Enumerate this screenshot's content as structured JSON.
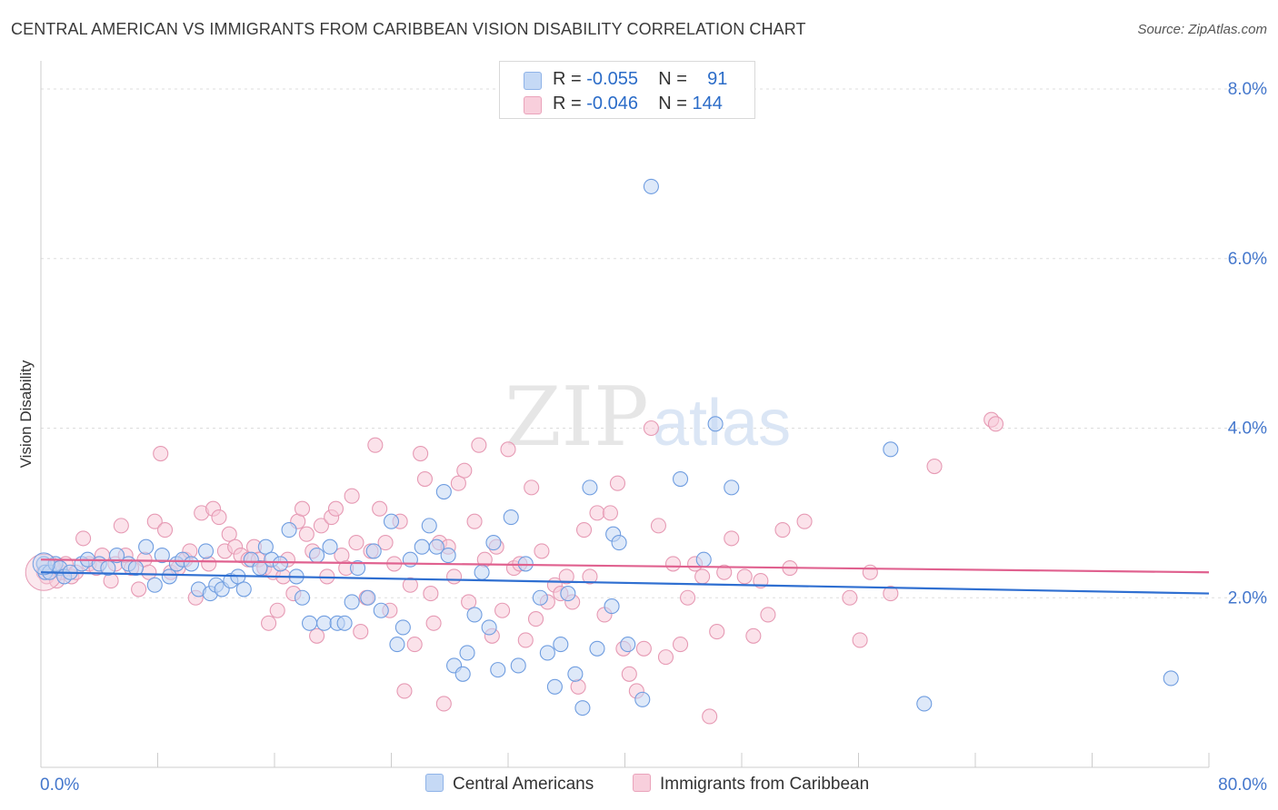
{
  "title": "CENTRAL AMERICAN VS IMMIGRANTS FROM CARIBBEAN VISION DISABILITY CORRELATION CHART",
  "source": "Source: ZipAtlas.com",
  "watermark": {
    "zip": "ZIP",
    "atlas": "atlas"
  },
  "legend": {
    "rows": [
      {
        "r_label": "R = ",
        "r_value": "-0.055",
        "n_label": "N = ",
        "n_value": "91",
        "color": "#8fb3e8",
        "fill": "#c5d9f5"
      },
      {
        "r_label": "R = ",
        "r_value": "-0.046",
        "n_label": "N = ",
        "n_value": "144",
        "color": "#eaa3bb",
        "fill": "#f8cfdc"
      }
    ]
  },
  "chart_data": {
    "type": "scatter",
    "title": "CENTRAL AMERICAN VS IMMIGRANTS FROM CARIBBEAN VISION DISABILITY CORRELATION CHART",
    "xlabel": "",
    "ylabel": "Vision Disability",
    "xlim": [
      0,
      80
    ],
    "ylim": [
      0,
      8.3
    ],
    "x_tick_labels": [
      "0.0%",
      "80.0%"
    ],
    "y_ticks": [
      2,
      4,
      6,
      8
    ],
    "y_tick_labels": [
      "2.0%",
      "4.0%",
      "6.0%",
      "8.0%"
    ],
    "grid": true,
    "legend_position": "top-center",
    "series": [
      {
        "name": "Central Americans",
        "color": "#6f9de0",
        "fill": "#c3d7f4",
        "trend": {
          "x": [
            0,
            80
          ],
          "y": [
            2.3,
            2.05
          ]
        },
        "points": [
          [
            0.2,
            2.4
          ],
          [
            0.3,
            2.3
          ],
          [
            0.6,
            2.3
          ],
          [
            1,
            2.4
          ],
          [
            1.3,
            2.35
          ],
          [
            1.6,
            2.25
          ],
          [
            2,
            2.3
          ],
          [
            2.8,
            2.4
          ],
          [
            3.2,
            2.45
          ],
          [
            4,
            2.4
          ],
          [
            4.6,
            2.35
          ],
          [
            5.2,
            2.5
          ],
          [
            6,
            2.4
          ],
          [
            6.5,
            2.35
          ],
          [
            7.2,
            2.6
          ],
          [
            7.8,
            2.15
          ],
          [
            8.3,
            2.5
          ],
          [
            8.8,
            2.25
          ],
          [
            9.3,
            2.4
          ],
          [
            9.7,
            2.45
          ],
          [
            10.3,
            2.4
          ],
          [
            10.8,
            2.1
          ],
          [
            11.3,
            2.55
          ],
          [
            11.6,
            2.05
          ],
          [
            12,
            2.15
          ],
          [
            12.4,
            2.1
          ],
          [
            13,
            2.2
          ],
          [
            13.5,
            2.25
          ],
          [
            13.9,
            2.1
          ],
          [
            14.4,
            2.45
          ],
          [
            15,
            2.35
          ],
          [
            15.4,
            2.6
          ],
          [
            15.8,
            2.45
          ],
          [
            16.4,
            2.4
          ],
          [
            17,
            2.8
          ],
          [
            17.5,
            2.25
          ],
          [
            17.9,
            2.0
          ],
          [
            18.4,
            1.7
          ],
          [
            18.9,
            2.5
          ],
          [
            19.4,
            1.7
          ],
          [
            19.8,
            2.6
          ],
          [
            20.3,
            1.7
          ],
          [
            20.8,
            1.7
          ],
          [
            21.3,
            1.95
          ],
          [
            21.7,
            2.35
          ],
          [
            22.4,
            2.0
          ],
          [
            22.8,
            2.55
          ],
          [
            23.3,
            1.85
          ],
          [
            24,
            2.9
          ],
          [
            24.4,
            1.45
          ],
          [
            24.8,
            1.65
          ],
          [
            25.3,
            2.45
          ],
          [
            26.1,
            2.6
          ],
          [
            26.6,
            2.85
          ],
          [
            27.1,
            2.6
          ],
          [
            27.6,
            3.25
          ],
          [
            27.9,
            2.5
          ],
          [
            28.3,
            1.2
          ],
          [
            28.9,
            1.1
          ],
          [
            29.2,
            1.35
          ],
          [
            29.7,
            1.8
          ],
          [
            30.2,
            2.3
          ],
          [
            30.7,
            1.65
          ],
          [
            31,
            2.65
          ],
          [
            31.3,
            1.15
          ],
          [
            32.2,
            2.95
          ],
          [
            32.7,
            1.2
          ],
          [
            33.2,
            2.4
          ],
          [
            34.2,
            2.0
          ],
          [
            34.7,
            1.35
          ],
          [
            35.2,
            0.95
          ],
          [
            35.6,
            1.45
          ],
          [
            36.1,
            2.05
          ],
          [
            36.6,
            1.1
          ],
          [
            37.1,
            0.7
          ],
          [
            37.6,
            3.3
          ],
          [
            38.1,
            1.4
          ],
          [
            39.2,
            2.75
          ],
          [
            39.6,
            2.65
          ],
          [
            39.1,
            1.9
          ],
          [
            40.2,
            1.45
          ],
          [
            41.2,
            0.8
          ],
          [
            41.8,
            6.85
          ],
          [
            43.8,
            3.4
          ],
          [
            45.4,
            2.45
          ],
          [
            46.2,
            4.05
          ],
          [
            47.3,
            3.3
          ],
          [
            58.2,
            3.75
          ],
          [
            60.5,
            0.75
          ],
          [
            77.4,
            1.05
          ]
        ],
        "sizes": {
          "0.2,2.4": 22
        }
      },
      {
        "name": "Immigrants from Caribbean",
        "color": "#e69ab4",
        "fill": "#f7cbd9",
        "trend": {
          "x": [
            0,
            80
          ],
          "y": [
            2.45,
            2.3
          ]
        },
        "points": [
          [
            0.2,
            2.3
          ],
          [
            0.4,
            2.25
          ],
          [
            0.8,
            2.35
          ],
          [
            1.1,
            2.2
          ],
          [
            1.4,
            2.3
          ],
          [
            1.7,
            2.4
          ],
          [
            2.1,
            2.25
          ],
          [
            2.4,
            2.3
          ],
          [
            2.9,
            2.7
          ],
          [
            3.3,
            2.4
          ],
          [
            3.8,
            2.35
          ],
          [
            4.2,
            2.5
          ],
          [
            4.8,
            2.2
          ],
          [
            5.1,
            2.4
          ],
          [
            5.5,
            2.85
          ],
          [
            5.8,
            2.5
          ],
          [
            6.2,
            2.35
          ],
          [
            6.7,
            2.1
          ],
          [
            7.1,
            2.45
          ],
          [
            7.4,
            2.3
          ],
          [
            7.8,
            2.9
          ],
          [
            8.2,
            3.7
          ],
          [
            8.5,
            2.8
          ],
          [
            8.9,
            2.3
          ],
          [
            9.4,
            2.35
          ],
          [
            9.9,
            2.45
          ],
          [
            10.2,
            2.55
          ],
          [
            10.6,
            2.0
          ],
          [
            11,
            3.0
          ],
          [
            11.5,
            2.4
          ],
          [
            11.8,
            3.05
          ],
          [
            12.2,
            2.95
          ],
          [
            12.6,
            2.55
          ],
          [
            12.9,
            2.75
          ],
          [
            13.3,
            2.6
          ],
          [
            13.7,
            2.5
          ],
          [
            14.2,
            2.45
          ],
          [
            14.6,
            2.6
          ],
          [
            14.9,
            2.45
          ],
          [
            15.3,
            2.35
          ],
          [
            15.6,
            1.7
          ],
          [
            15.9,
            2.3
          ],
          [
            16.2,
            1.85
          ],
          [
            16.6,
            2.25
          ],
          [
            16.9,
            2.45
          ],
          [
            17.3,
            2.05
          ],
          [
            17.6,
            2.9
          ],
          [
            17.9,
            3.05
          ],
          [
            18.2,
            2.75
          ],
          [
            18.6,
            2.55
          ],
          [
            18.9,
            1.55
          ],
          [
            19.2,
            2.85
          ],
          [
            19.6,
            2.25
          ],
          [
            19.9,
            2.95
          ],
          [
            20.2,
            3.05
          ],
          [
            20.6,
            2.5
          ],
          [
            20.9,
            2.35
          ],
          [
            21.3,
            3.2
          ],
          [
            21.6,
            2.65
          ],
          [
            21.9,
            1.6
          ],
          [
            22.3,
            2.0
          ],
          [
            22.6,
            2.55
          ],
          [
            22.9,
            3.8
          ],
          [
            23.2,
            3.05
          ],
          [
            23.6,
            2.65
          ],
          [
            23.9,
            1.85
          ],
          [
            24.2,
            2.4
          ],
          [
            24.6,
            2.9
          ],
          [
            24.9,
            0.9
          ],
          [
            25.3,
            2.15
          ],
          [
            25.6,
            1.45
          ],
          [
            26,
            3.7
          ],
          [
            26.3,
            3.4
          ],
          [
            26.7,
            2.05
          ],
          [
            26.9,
            1.7
          ],
          [
            27.3,
            2.65
          ],
          [
            27.6,
            0.75
          ],
          [
            27.9,
            2.6
          ],
          [
            28.3,
            2.25
          ],
          [
            28.6,
            3.35
          ],
          [
            29,
            3.5
          ],
          [
            29.3,
            1.95
          ],
          [
            29.7,
            2.9
          ],
          [
            30,
            3.8
          ],
          [
            30.4,
            2.45
          ],
          [
            30.9,
            1.55
          ],
          [
            31.2,
            2.6
          ],
          [
            31.6,
            1.85
          ],
          [
            32,
            3.75
          ],
          [
            32.4,
            2.35
          ],
          [
            32.8,
            2.4
          ],
          [
            33.2,
            1.5
          ],
          [
            33.6,
            3.3
          ],
          [
            33.9,
            1.75
          ],
          [
            34.3,
            2.55
          ],
          [
            34.7,
            1.95
          ],
          [
            35.2,
            2.15
          ],
          [
            35.6,
            2.05
          ],
          [
            36,
            2.25
          ],
          [
            36.4,
            1.95
          ],
          [
            36.8,
            0.95
          ],
          [
            37.2,
            2.8
          ],
          [
            37.6,
            2.25
          ],
          [
            38.1,
            3.0
          ],
          [
            38.6,
            1.8
          ],
          [
            39,
            3.0
          ],
          [
            39.5,
            3.35
          ],
          [
            39.9,
            1.4
          ],
          [
            40.3,
            1.1
          ],
          [
            40.8,
            0.9
          ],
          [
            41.3,
            1.4
          ],
          [
            41.8,
            4.0
          ],
          [
            42.3,
            2.85
          ],
          [
            42.8,
            1.3
          ],
          [
            43.3,
            2.4
          ],
          [
            43.8,
            1.45
          ],
          [
            44.3,
            2.0
          ],
          [
            44.8,
            2.4
          ],
          [
            45.3,
            2.25
          ],
          [
            45.8,
            0.6
          ],
          [
            46.3,
            1.6
          ],
          [
            46.8,
            2.3
          ],
          [
            47.3,
            2.7
          ],
          [
            48.2,
            2.25
          ],
          [
            48.8,
            1.55
          ],
          [
            49.3,
            2.2
          ],
          [
            49.8,
            1.8
          ],
          [
            50.8,
            2.8
          ],
          [
            51.3,
            2.35
          ],
          [
            52.3,
            2.9
          ],
          [
            55.4,
            2.0
          ],
          [
            56.1,
            1.5
          ],
          [
            56.8,
            2.3
          ],
          [
            58.2,
            2.05
          ],
          [
            61.2,
            3.55
          ],
          [
            65.1,
            4.1
          ],
          [
            65.4,
            4.05
          ]
        ]
      }
    ]
  }
}
